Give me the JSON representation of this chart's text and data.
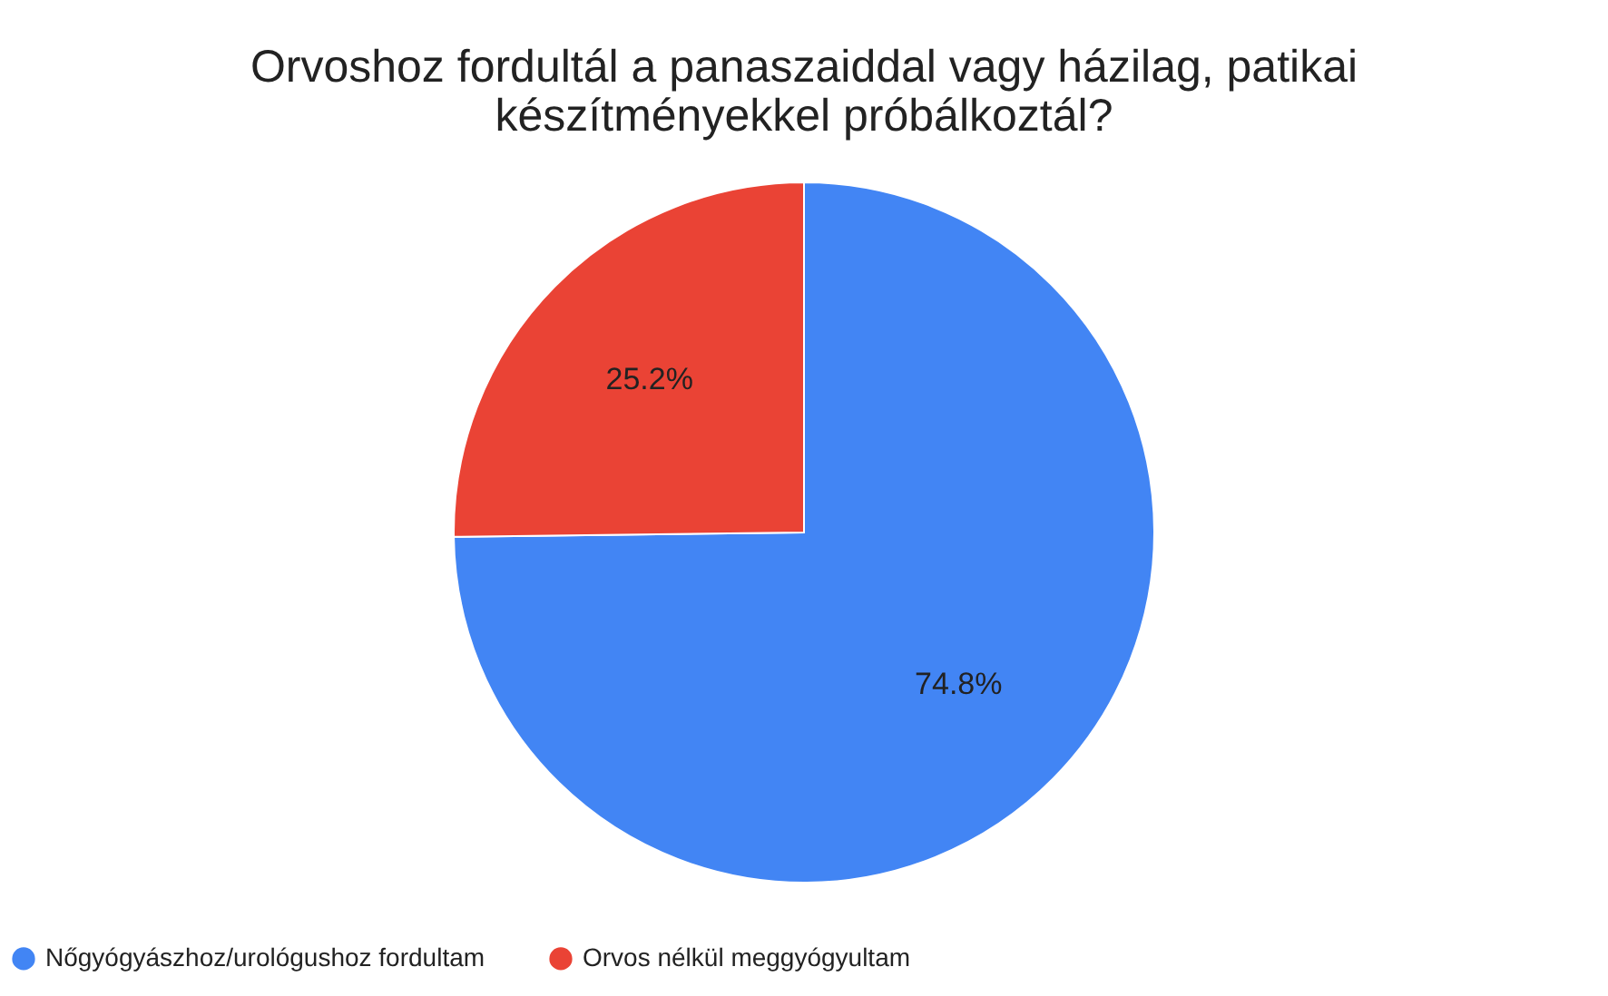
{
  "chart_data": {
    "type": "pie",
    "title": "Orvoshoz fordultál a panaszaiddal vagy házilag, patikai\nkészítményekkel próbálkoztál?",
    "categories": [
      "Nőgyógyászhoz/urológushoz fordultam",
      "Orvos nélkül meggyógyultam"
    ],
    "values": [
      74.8,
      25.2
    ],
    "colors": [
      "#4285f4",
      "#ea4335"
    ],
    "value_labels": [
      "74.8%",
      "25.2%"
    ],
    "legend": "bottom"
  }
}
